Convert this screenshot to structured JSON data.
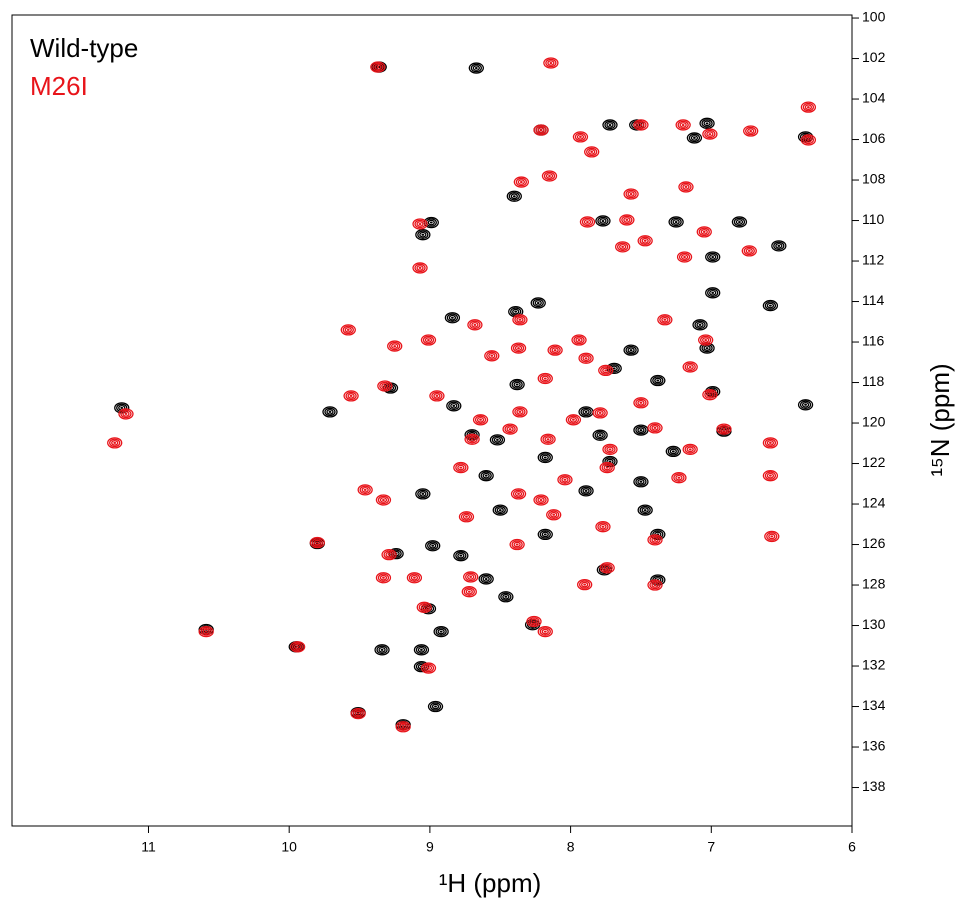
{
  "chart_data": {
    "type": "scatter",
    "xlabel": "¹H (ppm)",
    "ylabel": "¹⁵N (ppm)",
    "xlim": [
      11.97,
      6
    ],
    "ylim": [
      99.85,
      139.9
    ],
    "xticks": [
      11,
      10,
      9,
      8,
      7,
      6
    ],
    "yticks": [
      100,
      102,
      104,
      106,
      108,
      110,
      112,
      114,
      116,
      118,
      120,
      122,
      124,
      126,
      128,
      130,
      132,
      134,
      136,
      138
    ],
    "legend": "upper left",
    "series": [
      {
        "name": "Wild-type",
        "color": "#000000",
        "x": [
          9.36,
          8.67,
          8.21,
          7.72,
          7.53,
          7.12,
          7.03,
          7.77,
          7.25,
          6.8,
          6.52,
          6.99,
          9.05,
          8.99,
          6.99,
          7.08,
          6.58,
          8.23,
          8.39,
          8.84,
          7.57,
          7.03,
          7.69,
          7.38,
          6.99,
          8.38,
          9.28,
          9.71,
          8.83,
          7.89,
          7.79,
          7.5,
          7.27,
          6.91,
          8.52,
          8.7,
          8.6,
          8.18,
          7.72,
          7.5,
          7.89,
          9.05,
          8.5,
          7.47,
          7.38,
          8.18,
          9.8,
          9.24,
          8.98,
          8.78,
          8.6,
          8.46,
          7.38,
          7.76,
          8.27,
          9.01,
          8.92,
          9.34,
          9.06,
          9.06,
          9.95,
          10.59,
          8.96,
          9.19,
          9.51,
          11.19,
          6.33,
          6.33,
          8.4
        ],
        "values": [
          102.42,
          102.47,
          105.53,
          105.28,
          105.28,
          105.92,
          105.2,
          110.02,
          110.07,
          110.07,
          111.25,
          111.8,
          110.7,
          110.1,
          113.57,
          115.15,
          114.2,
          114.07,
          114.5,
          114.8,
          116.4,
          116.3,
          117.3,
          117.9,
          118.45,
          118.1,
          118.27,
          119.45,
          119.15,
          119.45,
          120.6,
          120.35,
          121.4,
          120.4,
          120.83,
          120.58,
          122.6,
          121.7,
          121.9,
          122.9,
          123.35,
          123.5,
          124.3,
          124.3,
          125.5,
          125.5,
          125.95,
          126.45,
          126.06,
          126.55,
          127.7,
          128.58,
          127.75,
          127.25,
          129.96,
          129.17,
          130.3,
          131.2,
          131.2,
          132.03,
          131.05,
          130.2,
          134.0,
          134.9,
          134.3,
          119.25,
          119.1,
          105.87,
          108.8
        ]
      },
      {
        "name": "M26I",
        "color": "#e8141a",
        "x": [
          9.37,
          8.14,
          8.21,
          7.93,
          7.85,
          7.5,
          7.2,
          7.01,
          6.72,
          6.31,
          6.31,
          7.57,
          7.18,
          8.15,
          8.35,
          7.88,
          7.6,
          7.63,
          7.47,
          7.05,
          6.73,
          7.19,
          9.07,
          9.07,
          9.58,
          9.25,
          9.01,
          8.68,
          8.36,
          7.33,
          7.04,
          7.15,
          7.94,
          8.11,
          8.37,
          8.56,
          7.89,
          7.75,
          8.18,
          9.32,
          9.56,
          8.95,
          7.01,
          7.5,
          7.79,
          7.98,
          8.36,
          8.64,
          8.7,
          8.43,
          8.16,
          7.72,
          7.4,
          7.15,
          6.91,
          6.58,
          8.78,
          8.37,
          7.74,
          7.23,
          6.58,
          8.04,
          8.21,
          9.33,
          9.46,
          8.74,
          8.12,
          7.77,
          7.4,
          8.38,
          9.8,
          9.29,
          9.33,
          9.11,
          8.71,
          8.72,
          7.9,
          7.4,
          7.74,
          9.04,
          8.26,
          8.18,
          9.01,
          10.59,
          9.94,
          9.51,
          9.19,
          11.16,
          11.24,
          6.57
        ],
        "values": [
          102.42,
          102.22,
          105.53,
          105.87,
          106.61,
          105.28,
          105.28,
          105.73,
          105.58,
          106.02,
          104.4,
          108.69,
          108.34,
          107.8,
          108.1,
          110.07,
          109.97,
          111.3,
          111.0,
          110.56,
          111.5,
          111.8,
          110.17,
          112.34,
          115.4,
          116.2,
          115.9,
          115.15,
          114.9,
          114.9,
          115.9,
          117.23,
          115.9,
          116.4,
          116.3,
          116.68,
          116.8,
          117.4,
          117.8,
          118.17,
          118.66,
          118.66,
          118.6,
          119.0,
          119.5,
          119.84,
          119.45,
          119.84,
          120.8,
          120.3,
          120.8,
          121.3,
          120.24,
          121.3,
          120.3,
          120.98,
          122.2,
          123.5,
          122.2,
          122.7,
          122.6,
          122.8,
          123.8,
          123.8,
          123.3,
          124.63,
          124.53,
          125.12,
          125.77,
          126.0,
          125.9,
          126.5,
          127.64,
          127.64,
          127.6,
          128.33,
          127.98,
          128.0,
          127.15,
          129.1,
          129.8,
          130.3,
          132.1,
          130.3,
          131.05,
          134.35,
          135.0,
          119.55,
          120.98,
          125.6
        ]
      }
    ]
  }
}
